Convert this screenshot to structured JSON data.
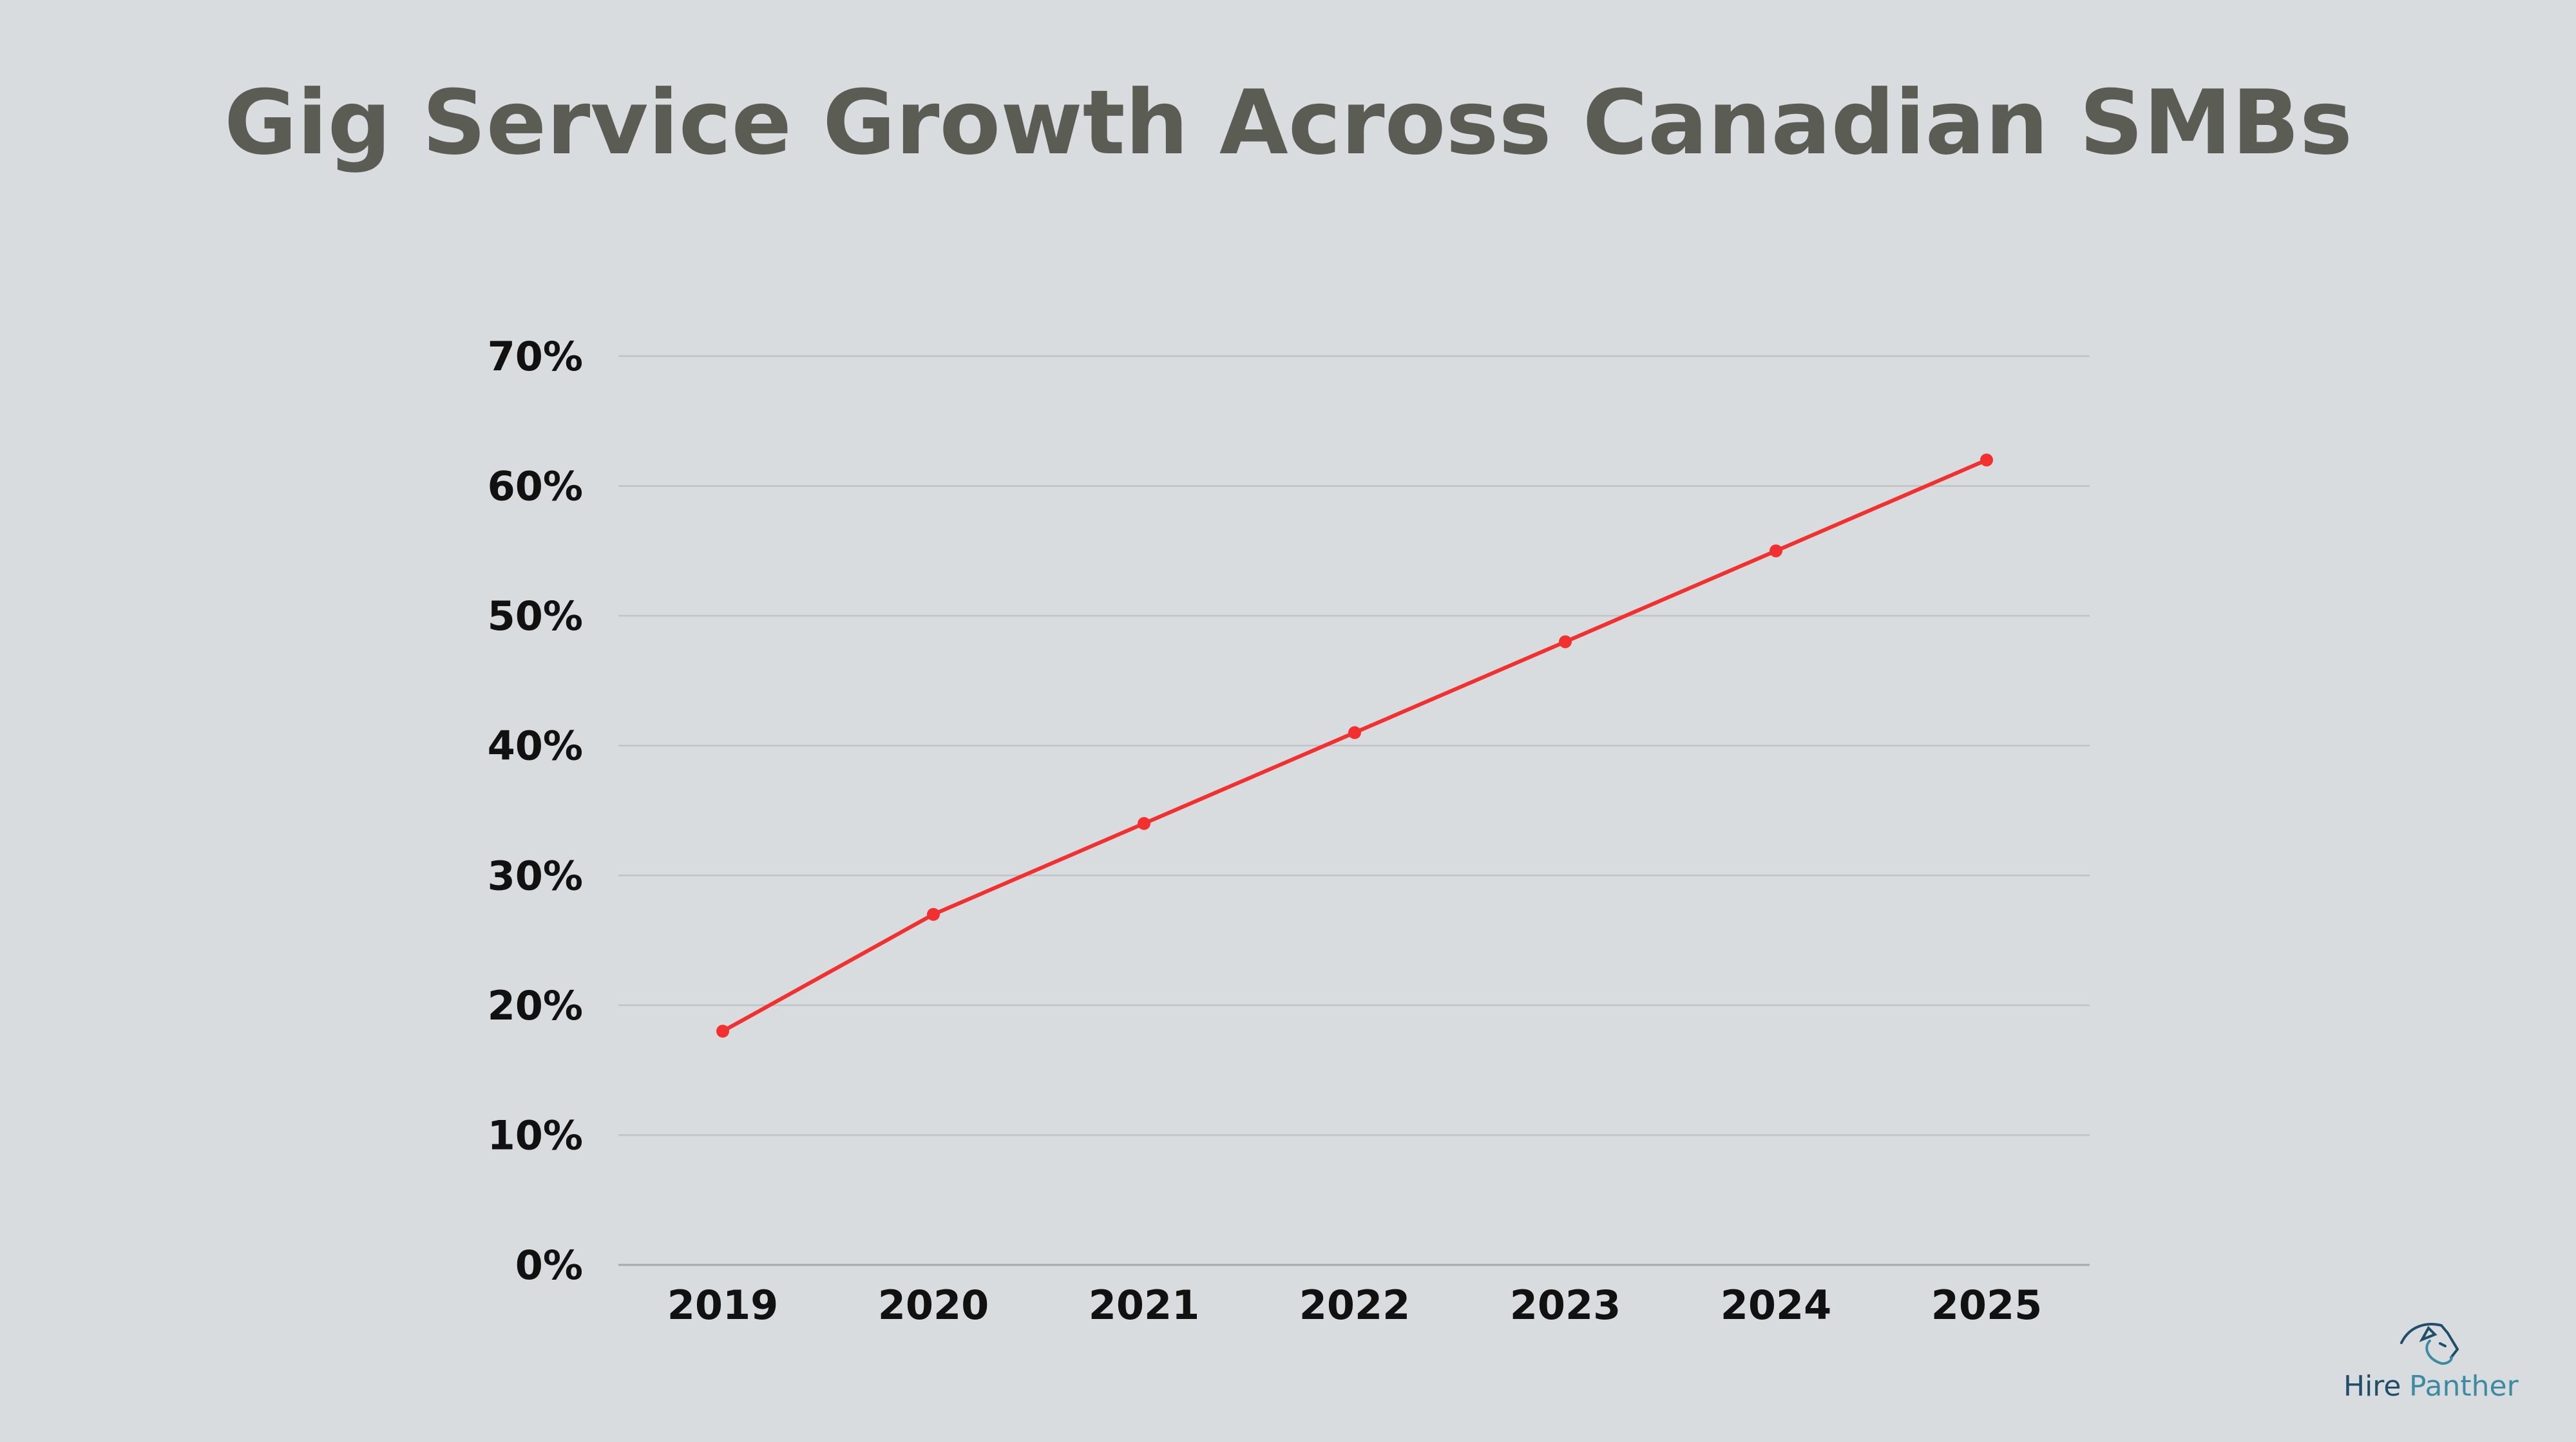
{
  "chart_data": {
    "type": "line",
    "title": "Gig Service Growth Across Canadian SMBs",
    "xlabel": "",
    "ylabel": "",
    "categories": [
      "2019",
      "2020",
      "2021",
      "2022",
      "2023",
      "2024",
      "2025"
    ],
    "series": [
      {
        "values": [
          18,
          27,
          34,
          41,
          48,
          55,
          62
        ],
        "color": "#f23030"
      }
    ],
    "ylim": [
      0,
      70
    ],
    "yticks": [
      0,
      10,
      20,
      30,
      40,
      50,
      60,
      70
    ],
    "ytick_labels": [
      "0%",
      "10%",
      "20%",
      "30%",
      "40%",
      "50%",
      "60%",
      "70%"
    ],
    "grid": true,
    "legend": "none",
    "background": "#d8dcdf"
  },
  "logo": {
    "text_part1": "Hire",
    "text_part2": "Panther",
    "icon": "panther-head-icon",
    "color_dark": "#1f4e68",
    "color_light": "#3d8aa3"
  }
}
